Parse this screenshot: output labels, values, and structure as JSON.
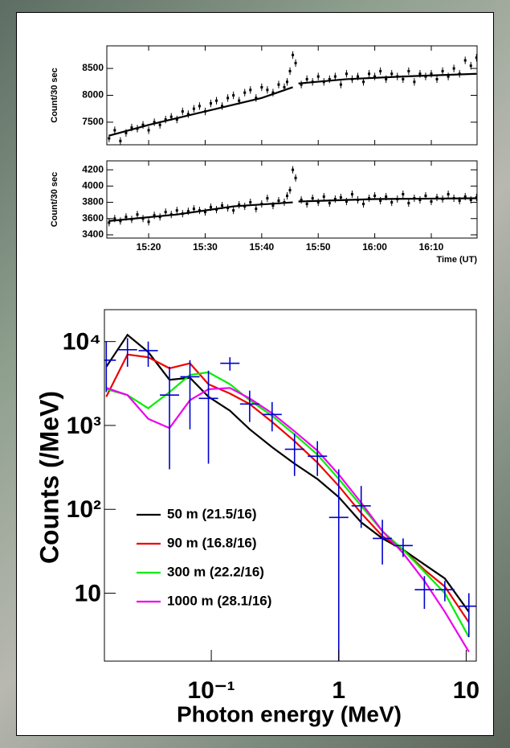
{
  "chart_data": [
    {
      "type": "errorbar",
      "ylabel": "Count/30 sec",
      "xtick_labels": false,
      "xlim": [
        12.6,
        78.1
      ],
      "ylim": [
        7080,
        8920
      ],
      "yticks": [
        7500,
        8000,
        8500
      ],
      "xticks": [
        20,
        30,
        40,
        50,
        60,
        70
      ],
      "color": "#000000",
      "error": 70,
      "x": [
        13,
        14,
        15,
        16,
        17,
        18,
        19,
        20,
        21,
        22,
        23,
        24,
        25,
        26,
        27,
        28,
        29,
        30,
        31,
        32,
        33,
        34,
        35,
        36,
        37,
        38,
        39,
        40,
        41,
        42,
        43,
        44,
        44.5,
        45,
        45.5,
        46,
        47,
        48,
        49,
        50,
        51,
        52,
        53,
        54,
        55,
        56,
        57,
        58,
        59,
        60,
        61,
        62,
        63,
        64,
        65,
        66,
        67,
        68,
        69,
        70,
        71,
        72,
        73,
        74,
        75,
        76,
        77,
        78
      ],
      "values": [
        7200,
        7350,
        7150,
        7300,
        7400,
        7380,
        7450,
        7350,
        7500,
        7450,
        7550,
        7600,
        7550,
        7700,
        7650,
        7750,
        7800,
        7700,
        7850,
        7900,
        7800,
        7950,
        8000,
        7900,
        8050,
        8100,
        7950,
        8150,
        8100,
        8050,
        8200,
        8150,
        8250,
        8450,
        8750,
        8600,
        8200,
        8300,
        8250,
        8350,
        8250,
        8300,
        8350,
        8200,
        8400,
        8300,
        8350,
        8250,
        8400,
        8350,
        8450,
        8300,
        8400,
        8350,
        8300,
        8450,
        8250,
        8400,
        8350,
        8400,
        8300,
        8450,
        8350,
        8500,
        8400,
        8650,
        8550,
        8700
      ],
      "fits": [
        {
          "x": [
            13,
            20,
            30,
            40,
            45.5
          ],
          "values": [
            7250,
            7450,
            7700,
            7950,
            8150
          ]
        },
        {
          "x": [
            46.5,
            55,
            65,
            78
          ],
          "values": [
            8220,
            8300,
            8350,
            8400
          ]
        }
      ]
    },
    {
      "type": "errorbar",
      "ylabel": "Count/30 sec",
      "xlabel": "Time (UT)",
      "xlim": [
        12.6,
        78.1
      ],
      "ylim": [
        3360,
        4310
      ],
      "yticks": [
        3400,
        3600,
        3800,
        4000,
        4200
      ],
      "xticks": [
        {
          "value": 20,
          "label": "15:20"
        },
        {
          "value": 30,
          "label": "15:30"
        },
        {
          "value": 40,
          "label": "15:40"
        },
        {
          "value": 50,
          "label": "15:50"
        },
        {
          "value": 60,
          "label": "16:00"
        },
        {
          "value": 70,
          "label": "16:10"
        }
      ],
      "color": "#000000",
      "error": 45,
      "x": [
        13,
        14,
        15,
        16,
        17,
        18,
        19,
        20,
        21,
        22,
        23,
        24,
        25,
        26,
        27,
        28,
        29,
        30,
        31,
        32,
        33,
        34,
        35,
        36,
        37,
        38,
        39,
        40,
        41,
        42,
        43,
        44,
        44.5,
        45,
        45.5,
        46,
        47,
        48,
        49,
        50,
        51,
        52,
        53,
        54,
        55,
        56,
        57,
        58,
        59,
        60,
        61,
        62,
        63,
        64,
        65,
        66,
        67,
        68,
        69,
        70,
        71,
        72,
        73,
        74,
        75,
        76,
        77,
        78
      ],
      "values": [
        3550,
        3600,
        3570,
        3620,
        3590,
        3650,
        3600,
        3560,
        3640,
        3620,
        3680,
        3650,
        3700,
        3660,
        3690,
        3720,
        3700,
        3680,
        3740,
        3710,
        3760,
        3730,
        3700,
        3770,
        3750,
        3800,
        3720,
        3780,
        3850,
        3760,
        3820,
        3800,
        3880,
        3950,
        4200,
        4100,
        3830,
        3780,
        3850,
        3800,
        3870,
        3790,
        3840,
        3860,
        3810,
        3900,
        3830,
        3780,
        3850,
        3880,
        3820,
        3870,
        3800,
        3840,
        3900,
        3790,
        3850,
        3830,
        3880,
        3810,
        3860,
        3840,
        3900,
        3850,
        3820,
        3870,
        3830,
        3860
      ],
      "fits": [
        {
          "x": [
            13,
            25,
            35,
            45.5
          ],
          "values": [
            3570,
            3650,
            3750,
            3800
          ]
        },
        {
          "x": [
            46.5,
            60,
            78
          ],
          "values": [
            3810,
            3840,
            3850
          ]
        }
      ]
    },
    {
      "type": "line",
      "xlabel": "Photon energy (MeV)",
      "ylabel": "Counts (/MeV)",
      "xscale": "log",
      "yscale": "log",
      "legend": "lower left",
      "xlim": [
        0.0145,
        12
      ],
      "ylim": [
        1.55,
        24000
      ],
      "xticks": [
        {
          "value": 0.1,
          "label": "10⁻¹"
        },
        1,
        10
      ],
      "yticks": [
        10,
        {
          "value": 100,
          "label": "10²"
        },
        {
          "value": 1000,
          "label": "10³"
        },
        {
          "value": 10000,
          "label": "10⁴"
        }
      ],
      "x": [
        0.015,
        0.022,
        0.032,
        0.047,
        0.068,
        0.095,
        0.14,
        0.2,
        0.3,
        0.45,
        0.68,
        1.0,
        1.5,
        2.2,
        3.2,
        4.7,
        6.8,
        10.5
      ],
      "series": [
        {
          "name": "50 m (21.5/16)",
          "color": "#000000",
          "values": [
            5000,
            12000,
            7500,
            3500,
            3700,
            2200,
            1500,
            900,
            550,
            350,
            230,
            140,
            70,
            45,
            33,
            22,
            15,
            6
          ]
        },
        {
          "name": "90 m (16.8/16)",
          "color": "#ee0000",
          "values": [
            2200,
            7000,
            6500,
            4800,
            5500,
            3100,
            2400,
            1800,
            1100,
            650,
            360,
            190,
            90,
            48,
            33,
            19,
            12,
            4.5
          ]
        },
        {
          "name": "300 m (22.2/16)",
          "color": "#00ee00",
          "values": [
            2700,
            2300,
            1600,
            2500,
            4000,
            4300,
            3100,
            2000,
            1300,
            780,
            450,
            230,
            110,
            55,
            33,
            18,
            10,
            3
          ]
        },
        {
          "name": "1000 m (28.1/16)",
          "color": "#ee00ee",
          "values": [
            2800,
            2300,
            1200,
            930,
            2000,
            2700,
            2800,
            2100,
            1400,
            850,
            500,
            260,
            120,
            55,
            30,
            14,
            6,
            2
          ]
        }
      ],
      "points": {
        "color": "#0000cc",
        "x": [
          0.015,
          0.022,
          0.032,
          0.047,
          0.068,
          0.095,
          0.14,
          0.2,
          0.3,
          0.45,
          0.68,
          1.0,
          1.5,
          2.2,
          3.2,
          4.7,
          6.8,
          10.5
        ],
        "values": [
          6000,
          8000,
          7800,
          2300,
          3800,
          2100,
          5500,
          1800,
          1350,
          520,
          430,
          80,
          110,
          45,
          37,
          11,
          11,
          7
        ],
        "low": [
          2500,
          5000,
          5000,
          300,
          900,
          350,
          4500,
          1100,
          850,
          250,
          250,
          1.55,
          60,
          22,
          27,
          6.5,
          8,
          3
        ],
        "high": [
          10000,
          11000,
          10000,
          5000,
          6000,
          4500,
          6500,
          2600,
          1900,
          800,
          650,
          300,
          190,
          75,
          45,
          16,
          14,
          10
        ]
      }
    }
  ]
}
